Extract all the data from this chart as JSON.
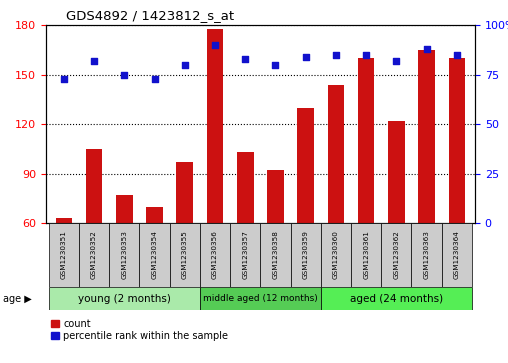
{
  "title": "GDS4892 / 1423812_s_at",
  "samples": [
    "GSM1230351",
    "GSM1230352",
    "GSM1230353",
    "GSM1230354",
    "GSM1230355",
    "GSM1230356",
    "GSM1230357",
    "GSM1230358",
    "GSM1230359",
    "GSM1230360",
    "GSM1230361",
    "GSM1230362",
    "GSM1230363",
    "GSM1230364"
  ],
  "counts": [
    63,
    105,
    77,
    70,
    97,
    178,
    103,
    92,
    130,
    144,
    160,
    122,
    165,
    160
  ],
  "percentiles": [
    73,
    82,
    75,
    73,
    80,
    90,
    83,
    80,
    84,
    85,
    85,
    82,
    88,
    85
  ],
  "ylim_left": [
    60,
    180
  ],
  "ylim_right": [
    0,
    100
  ],
  "yticks_left": [
    60,
    90,
    120,
    150,
    180
  ],
  "yticks_right": [
    0,
    25,
    50,
    75,
    100
  ],
  "groups": [
    {
      "label": "young (2 months)",
      "start": 0,
      "end": 5,
      "color": "#AAEAAA"
    },
    {
      "label": "middle aged (12 months)",
      "start": 5,
      "end": 9,
      "color": "#55CC55"
    },
    {
      "label": "aged (24 months)",
      "start": 9,
      "end": 14,
      "color": "#55EE55"
    }
  ],
  "bar_color": "#CC1111",
  "dot_color": "#1111CC",
  "legend_count": "count",
  "legend_percentile": "percentile rank within the sample"
}
